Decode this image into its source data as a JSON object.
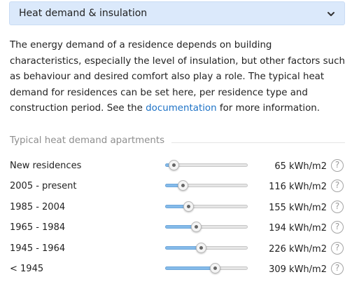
{
  "header": {
    "title": "Heat demand & insulation",
    "chevron_icon": "chevron-down-icon"
  },
  "description": {
    "text_before": "The energy demand of a residence depends on building characteristics, especially the level of insulation, but other factors such as behaviour and desired comfort also play a role. The typical heat demand for residences can be set here, per residence type and construction period. See the ",
    "link": "documentation",
    "text_after": " for more information."
  },
  "section": {
    "title": "Typical heat demand apartments"
  },
  "rows": [
    {
      "label": "New residences",
      "value": "65 kWh/m2",
      "level": 0.1
    },
    {
      "label": "2005 - present",
      "value": "116 kWh/m2",
      "level": 0.21
    },
    {
      "label": "1985 - 2004",
      "value": "155 kWh/m2",
      "level": 0.28
    },
    {
      "label": "1965 - 1984",
      "value": "194 kWh/m2",
      "level": 0.37
    },
    {
      "label": "1945 - 1964",
      "value": "226 kWh/m2",
      "level": 0.43
    },
    {
      "label": "< 1945",
      "value": "309 kWh/m2",
      "level": 0.6
    }
  ],
  "help_icon": "question-circle-icon",
  "help_glyph": "?",
  "colors": {
    "header_bg": "#dbe9fb",
    "link": "#1d72c6",
    "slider_fill": "#85bbea",
    "section_title": "#8e8e8e"
  }
}
